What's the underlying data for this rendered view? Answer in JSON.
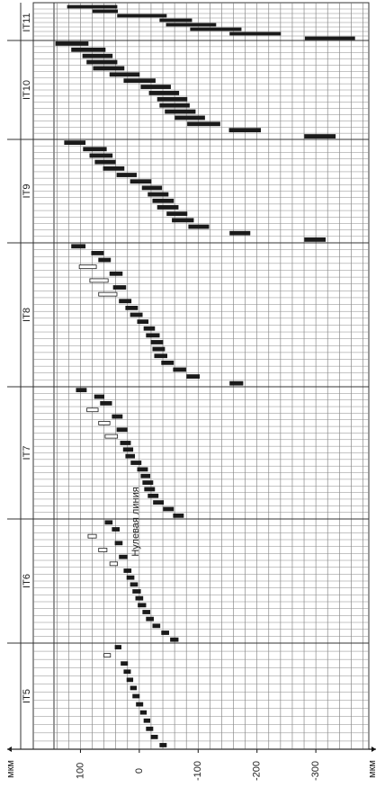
{
  "chart_data": {
    "type": "range",
    "x_unit": "мкм",
    "zero_line_label": "Нулевая линия",
    "xlim": [
      145,
      -390
    ],
    "xticks": [
      100,
      0,
      -100,
      -200,
      -300
    ],
    "minor_ticks": [
      140,
      120,
      100,
      80,
      60,
      40,
      20,
      0,
      -20,
      -40,
      -60,
      -80,
      -100,
      -120,
      -140,
      -160,
      -180,
      -200,
      -220,
      -240,
      -260,
      -280,
      -300,
      -320,
      -340,
      -360,
      -380
    ],
    "grid": true,
    "groups": [
      {
        "name": "IT11",
        "values": [
          [
            122,
            38
          ],
          [
            79,
            37
          ],
          [
            37,
            -46
          ],
          [
            -35,
            -89
          ],
          [
            -46,
            -130
          ],
          [
            -87,
            -173
          ],
          [
            -154,
            -240
          ],
          [
            -282,
            -366
          ]
        ],
        "colors": [
          "#1a1a1a",
          "#1a1a1a",
          "#1a1a1a",
          "#1a1a1a",
          "#1a1a1a",
          "#1a1a1a",
          "#1a1a1a",
          "#1a1a1a"
        ]
      },
      {
        "name": "IT10",
        "values": [
          [
            142,
            87
          ],
          [
            115,
            58
          ],
          [
            96,
            46
          ],
          [
            89,
            38
          ],
          [
            78,
            26
          ],
          [
            50,
            0
          ],
          [
            26,
            -27
          ],
          [
            -3,
            -53
          ],
          [
            -17,
            -67
          ],
          [
            -31,
            -81
          ],
          [
            -35,
            -85
          ],
          [
            -44,
            -95
          ],
          [
            -61,
            -111
          ],
          [
            -82,
            -137
          ],
          [
            -153,
            -206
          ],
          [
            -281,
            -333
          ]
        ],
        "colors": [
          "#1a1a1a",
          "#1a1a1a",
          "#1a1a1a",
          "#1a1a1a",
          "#1a1a1a",
          "#1a1a1a",
          "#1a1a1a",
          "#1a1a1a",
          "#1a1a1a",
          "#1a1a1a",
          "#1a1a1a",
          "#1a1a1a",
          "#1a1a1a",
          "#1a1a1a",
          "#1a1a1a",
          "#1a1a1a"
        ]
      },
      {
        "name": "IT9",
        "values": [
          [
            127,
            92
          ],
          [
            95,
            56
          ],
          [
            84,
            46
          ],
          [
            75,
            41
          ],
          [
            61,
            26
          ],
          [
            38,
            5
          ],
          [
            15,
            -20
          ],
          [
            -5,
            -38
          ],
          [
            -15,
            -49
          ],
          [
            -23,
            -58
          ],
          [
            -31,
            -66
          ],
          [
            -47,
            -81
          ],
          [
            -56,
            -92
          ],
          [
            -84,
            -118
          ],
          [
            -154,
            -188
          ],
          [
            -281,
            -316
          ]
        ],
        "colors": [
          "#1a1a1a",
          "#1a1a1a",
          "#1a1a1a",
          "#1a1a1a",
          "#1a1a1a",
          "#1a1a1a",
          "#1a1a1a",
          "#1a1a1a",
          "#1a1a1a",
          "#1a1a1a",
          "#1a1a1a",
          "#1a1a1a",
          "#1a1a1a",
          "#1a1a1a",
          "#1a1a1a",
          "#1a1a1a"
        ]
      },
      {
        "name": "IT8",
        "values": [
          [
            115,
            92
          ],
          [
            81,
            61
          ],
          [
            69,
            49
          ],
          [
            102,
            73
          ],
          [
            50,
            29
          ],
          [
            84,
            53
          ],
          [
            44,
            23
          ],
          [
            69,
            38
          ],
          [
            34,
            14
          ],
          [
            23,
            3
          ],
          [
            15,
            -5
          ],
          [
            3,
            -15
          ],
          [
            -8,
            -26
          ],
          [
            -12,
            -34
          ],
          [
            -20,
            -40
          ],
          [
            -23,
            -43
          ],
          [
            -26,
            -47
          ],
          [
            -38,
            -58
          ],
          [
            -58,
            -79
          ],
          [
            -81,
            -102
          ],
          [
            -154,
            -176
          ]
        ],
        "colors": [
          "#1a1a1a",
          "#1a1a1a",
          "#1a1a1a",
          "#ffffff",
          "#1a1a1a",
          "#ffffff",
          "#1a1a1a",
          "#ffffff",
          "#1a1a1a",
          "#1a1a1a",
          "#1a1a1a",
          "#1a1a1a",
          "#1a1a1a",
          "#1a1a1a",
          "#1a1a1a",
          "#1a1a1a",
          "#1a1a1a",
          "#1a1a1a",
          "#1a1a1a",
          "#1a1a1a",
          "#1a1a1a"
        ]
      },
      {
        "name": "IT7",
        "values": [
          [
            107,
            90
          ],
          [
            76,
            60
          ],
          [
            66,
            47
          ],
          [
            89,
            70
          ],
          [
            46,
            29
          ],
          [
            69,
            50
          ],
          [
            38,
            21
          ],
          [
            58,
            37
          ],
          [
            32,
            15
          ],
          [
            27,
            11
          ],
          [
            23,
            8
          ],
          [
            14,
            -3
          ],
          [
            3,
            -14
          ],
          [
            -3,
            -18
          ],
          [
            -6,
            -23
          ],
          [
            -9,
            -26
          ],
          [
            -15,
            -32
          ],
          [
            -24,
            -41
          ],
          [
            -41,
            -58
          ],
          [
            -58,
            -75
          ]
        ],
        "colors": [
          "#1a1a1a",
          "#1a1a1a",
          "#1a1a1a",
          "#ffffff",
          "#1a1a1a",
          "#ffffff",
          "#1a1a1a",
          "#ffffff",
          "#1a1a1a",
          "#1a1a1a",
          "#1a1a1a",
          "#1a1a1a",
          "#1a1a1a",
          "#1a1a1a",
          "#1a1a1a",
          "#1a1a1a",
          "#1a1a1a",
          "#1a1a1a",
          "#1a1a1a",
          "#1a1a1a"
        ]
      },
      {
        "name": "IT6",
        "values": [
          [
            58,
            46
          ],
          [
            46,
            34
          ],
          [
            87,
            73
          ],
          [
            41,
            29
          ],
          [
            69,
            55
          ],
          [
            34,
            21
          ],
          [
            50,
            37
          ],
          [
            26,
            14
          ],
          [
            21,
            9
          ],
          [
            15,
            3
          ],
          [
            11,
            -2
          ],
          [
            6,
            -6
          ],
          [
            2,
            -11
          ],
          [
            -6,
            -18
          ],
          [
            -12,
            -24
          ],
          [
            -23,
            -35
          ],
          [
            -38,
            -50
          ],
          [
            -53,
            -66
          ]
        ],
        "colors": [
          "#1a1a1a",
          "#1a1a1a",
          "#ffffff",
          "#1a1a1a",
          "#ffffff",
          "#1a1a1a",
          "#ffffff",
          "#1a1a1a",
          "#1a1a1a",
          "#1a1a1a",
          "#1a1a1a",
          "#1a1a1a",
          "#1a1a1a",
          "#1a1a1a",
          "#1a1a1a",
          "#1a1a1a",
          "#1a1a1a",
          "#1a1a1a"
        ]
      },
      {
        "name": "IT5",
        "values": [
          [
            41,
            31
          ],
          [
            60,
            49
          ],
          [
            31,
            20
          ],
          [
            26,
            15
          ],
          [
            21,
            11
          ],
          [
            15,
            5
          ],
          [
            11,
            0
          ],
          [
            5,
            -6
          ],
          [
            -2,
            -12
          ],
          [
            -8,
            -18
          ],
          [
            -12,
            -23
          ],
          [
            -20,
            -31
          ],
          [
            -35,
            -46
          ]
        ],
        "colors": [
          "#1a1a1a",
          "#ffffff",
          "#1a1a1a",
          "#1a1a1a",
          "#1a1a1a",
          "#1a1a1a",
          "#1a1a1a",
          "#1a1a1a",
          "#1a1a1a",
          "#1a1a1a",
          "#1a1a1a",
          "#1a1a1a",
          "#1a1a1a"
        ]
      }
    ]
  }
}
